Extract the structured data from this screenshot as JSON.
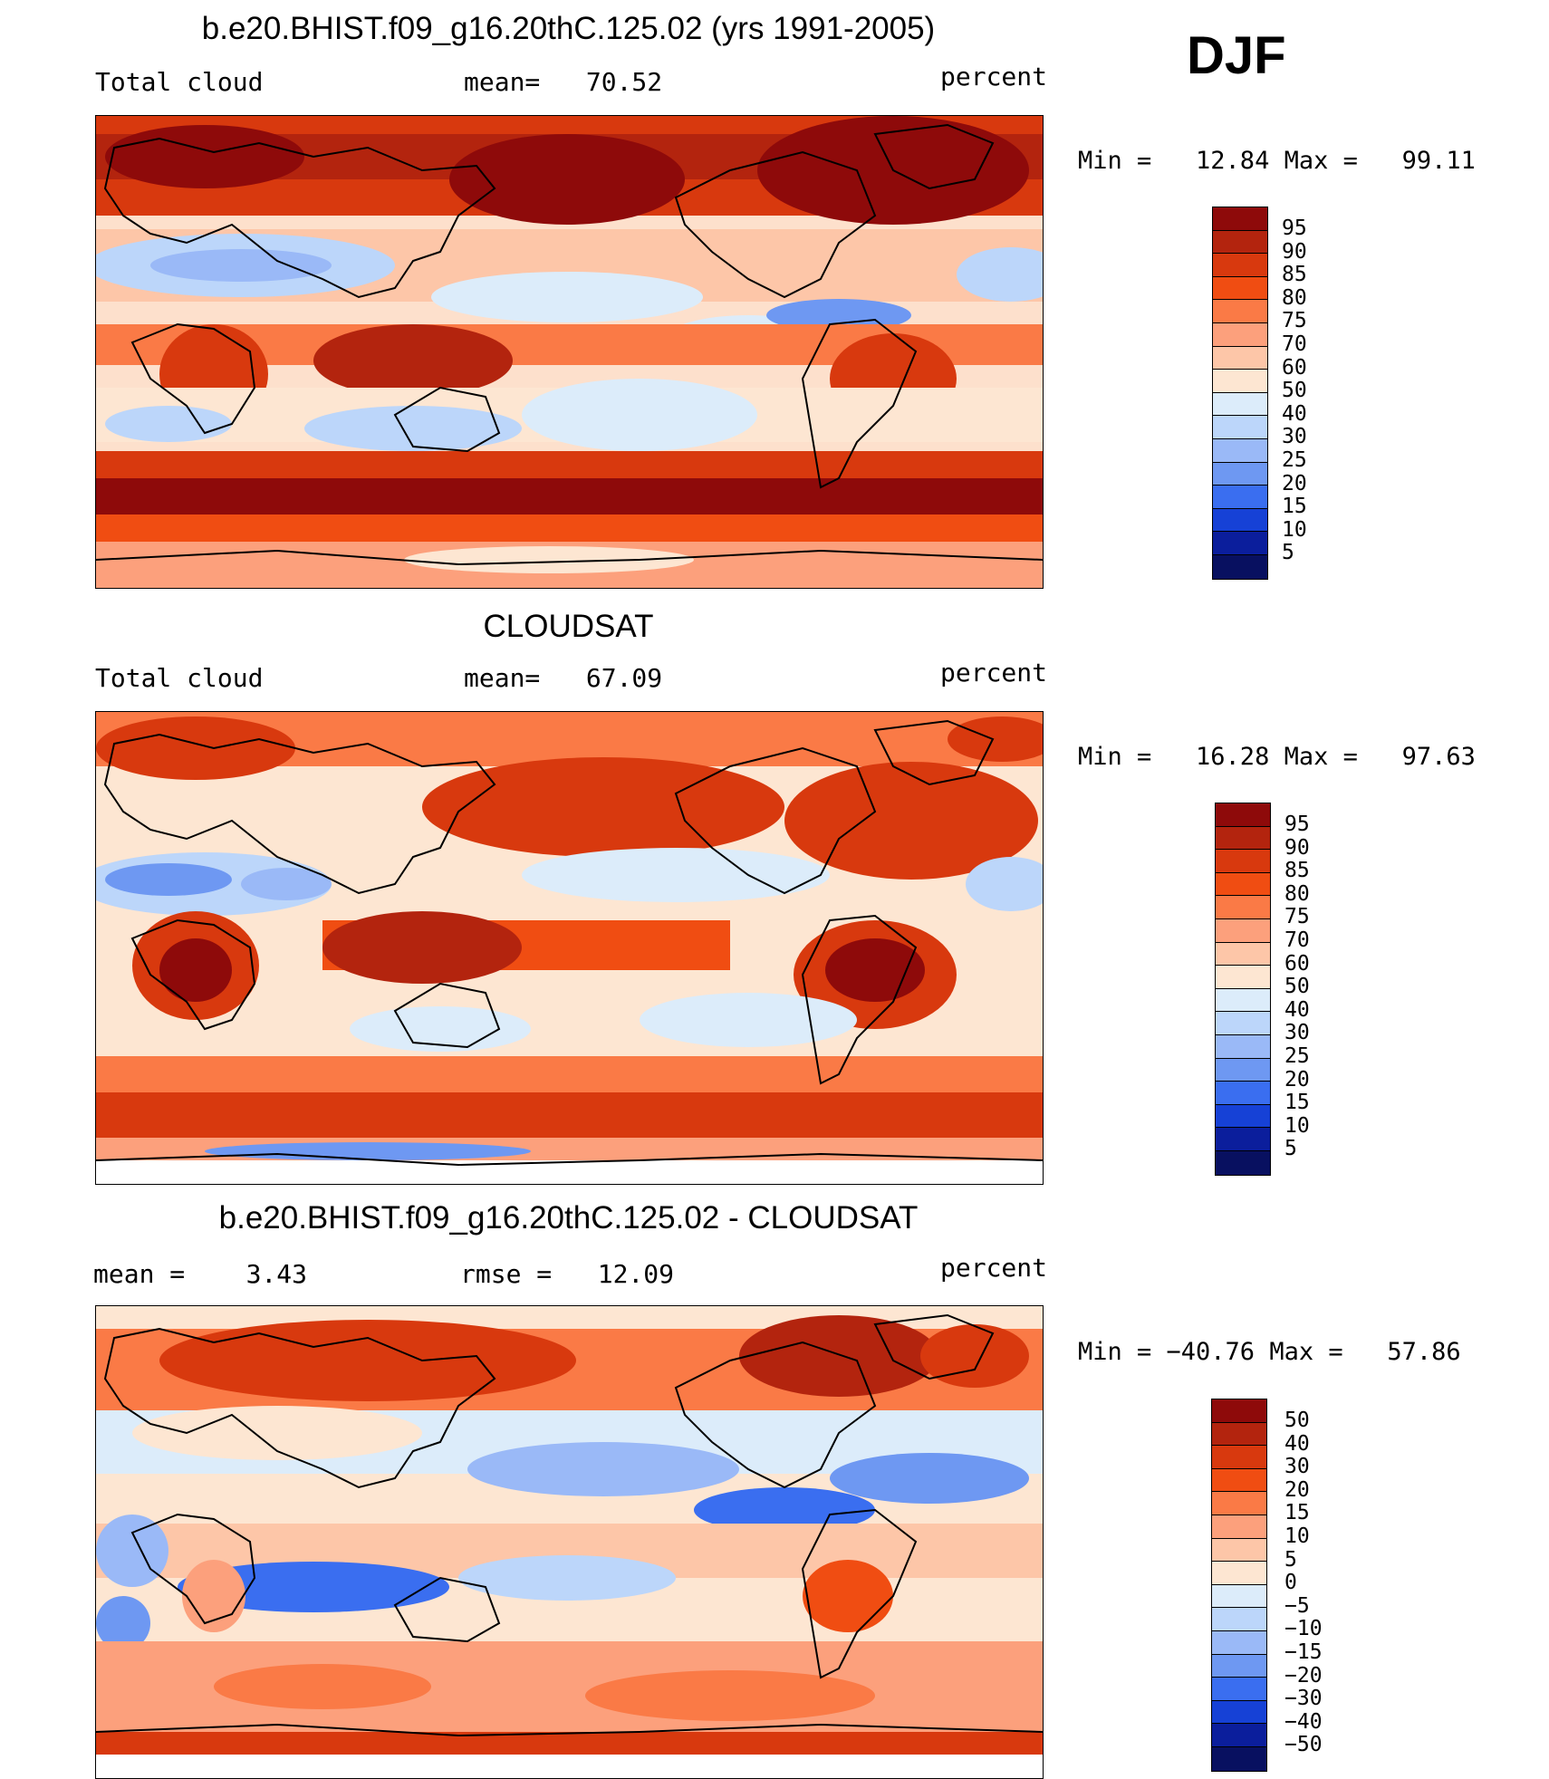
{
  "season": "DJF",
  "panels": [
    {
      "title": "b.e20.BHIST.f09_g16.20thC.125.02 (yrs 1991-2005)",
      "left_label": "Total cloud",
      "center_label": "mean=   70.52",
      "right_label": "percent",
      "min_max": "Min =   12.84 Max =   99.11",
      "colorbar": {
        "levels": [
          "95",
          "90",
          "85",
          "80",
          "75",
          "70",
          "60",
          "50",
          "40",
          "30",
          "25",
          "20",
          "15",
          "10",
          "5"
        ],
        "colors": [
          "#8e0a0a",
          "#b3240e",
          "#d8390e",
          "#f04d12",
          "#fa7a46",
          "#fca07c",
          "#fdc6a8",
          "#fde6d2",
          "#dcecfa",
          "#bcd6fa",
          "#9ab9f7",
          "#6e98f2",
          "#3a6ef0",
          "#1641d6",
          "#0b1e9c",
          "#081060"
        ]
      }
    },
    {
      "title": "CLOUDSAT",
      "left_label": "Total cloud",
      "center_label": "mean=   67.09",
      "right_label": "percent",
      "min_max": "Min =   16.28 Max =   97.63",
      "colorbar": {
        "levels": [
          "95",
          "90",
          "85",
          "80",
          "75",
          "70",
          "60",
          "50",
          "40",
          "30",
          "25",
          "20",
          "15",
          "10",
          "5"
        ],
        "colors": [
          "#8e0a0a",
          "#b3240e",
          "#d8390e",
          "#f04d12",
          "#fa7a46",
          "#fca07c",
          "#fdc6a8",
          "#fde6d2",
          "#dcecfa",
          "#bcd6fa",
          "#9ab9f7",
          "#6e98f2",
          "#3a6ef0",
          "#1641d6",
          "#0b1e9c",
          "#081060"
        ]
      }
    },
    {
      "title": "b.e20.BHIST.f09_g16.20thC.125.02 - CLOUDSAT",
      "left_label": "mean =    3.43",
      "center_label": "rmse =   12.09",
      "right_label": "percent",
      "min_max": "Min = −40.76 Max =   57.86",
      "colorbar": {
        "levels": [
          "50",
          "40",
          "30",
          "20",
          "15",
          "10",
          "5",
          "0",
          "−5",
          "−10",
          "−15",
          "−20",
          "−30",
          "−40",
          "−50"
        ],
        "colors": [
          "#8e0a0a",
          "#b3240e",
          "#d8390e",
          "#f04d12",
          "#fa7a46",
          "#fca07c",
          "#fdc6a8",
          "#fde6d2",
          "#dcecfa",
          "#bcd6fa",
          "#9ab9f7",
          "#6e98f2",
          "#3a6ef0",
          "#1641d6",
          "#0b1e9c",
          "#081060"
        ]
      }
    }
  ]
}
